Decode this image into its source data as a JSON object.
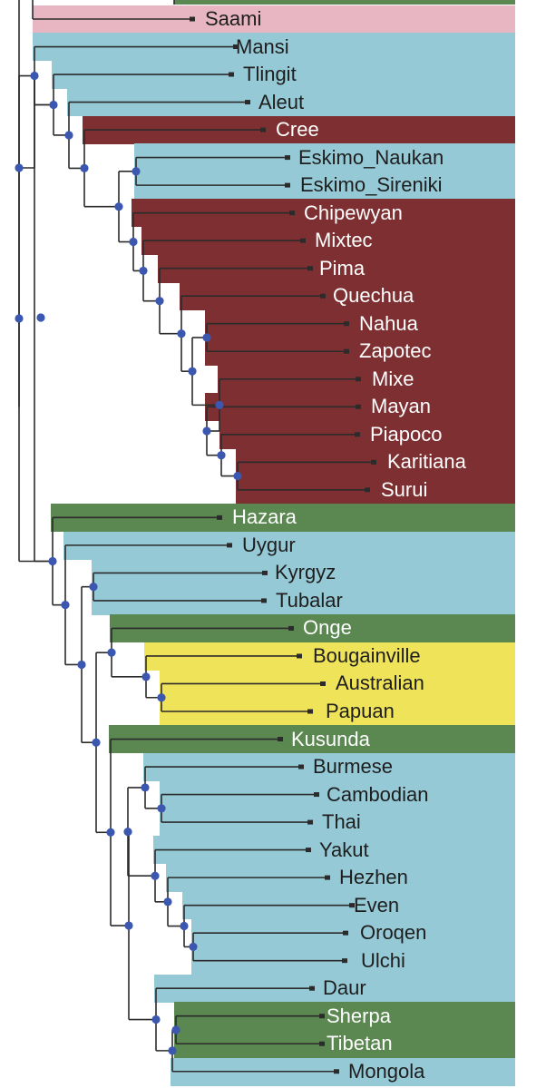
{
  "colors": {
    "blue": "#95c9d6",
    "darkred": "#7e2f31",
    "green": "#5b8751",
    "yellow": "#efe35a",
    "pink": "#e7b6c2",
    "node": "#3b57b0",
    "line": "#2b2b2b"
  },
  "leaves": [
    {
      "label": "Saami",
      "color": "pink"
    },
    {
      "label": "Mansi",
      "color": "blue"
    },
    {
      "label": "Tlingit",
      "color": "blue"
    },
    {
      "label": "Aleut",
      "color": "blue"
    },
    {
      "label": "Cree",
      "color": "darkred"
    },
    {
      "label": "Eskimo_Naukan",
      "color": "blue"
    },
    {
      "label": "Eskimo_Sireniki",
      "color": "blue"
    },
    {
      "label": "Chipewyan",
      "color": "darkred"
    },
    {
      "label": "Mixtec",
      "color": "darkred"
    },
    {
      "label": "Pima",
      "color": "darkred"
    },
    {
      "label": "Quechua",
      "color": "darkred"
    },
    {
      "label": "Nahua",
      "color": "darkred"
    },
    {
      "label": "Zapotec",
      "color": "darkred"
    },
    {
      "label": "Mixe",
      "color": "darkred"
    },
    {
      "label": "Mayan",
      "color": "darkred"
    },
    {
      "label": "Piapoco",
      "color": "darkred"
    },
    {
      "label": "Karitiana",
      "color": "darkred"
    },
    {
      "label": "Surui",
      "color": "darkred"
    },
    {
      "label": "Hazara",
      "color": "green"
    },
    {
      "label": "Uygur",
      "color": "blue"
    },
    {
      "label": "Kyrgyz",
      "color": "blue"
    },
    {
      "label": "Tubalar",
      "color": "blue"
    },
    {
      "label": "Onge",
      "color": "green"
    },
    {
      "label": "Bougainville",
      "color": "yellow"
    },
    {
      "label": "Australian",
      "color": "yellow"
    },
    {
      "label": "Papuan",
      "color": "yellow"
    },
    {
      "label": "Kusunda",
      "color": "green"
    },
    {
      "label": "Burmese",
      "color": "blue"
    },
    {
      "label": "Cambodian",
      "color": "blue"
    },
    {
      "label": "Thai",
      "color": "blue"
    },
    {
      "label": "Yakut",
      "color": "blue"
    },
    {
      "label": "Hezhen",
      "color": "blue"
    },
    {
      "label": "Even",
      "color": "blue"
    },
    {
      "label": "Oroqen",
      "color": "blue"
    },
    {
      "label": "Ulchi",
      "color": "blue"
    },
    {
      "label": "Daur",
      "color": "blue"
    },
    {
      "label": "Sherpa",
      "color": "green"
    },
    {
      "label": "Tibetan",
      "color": "green"
    },
    {
      "label": "Mongola",
      "color": "blue"
    }
  ],
  "clades": [
    {
      "children": [
        5,
        6
      ],
      "support": true
    },
    {
      "children": [
        16,
        17
      ],
      "support": true
    },
    {
      "children": [
        15,
        "c1"
      ],
      "support": true
    },
    {
      "children": [
        14,
        "c2"
      ],
      "support": true
    },
    {
      "children": [
        13,
        "c3"
      ],
      "support": true
    },
    {
      "children": [
        11,
        12
      ],
      "support": true
    },
    {
      "children": [
        "c5",
        "c4"
      ],
      "support": true
    },
    {
      "children": [
        10,
        "c6"
      ],
      "support": true
    },
    {
      "children": [
        9,
        "c7"
      ],
      "support": true
    },
    {
      "children": [
        8,
        "c8"
      ],
      "support": true
    },
    {
      "children": [
        7,
        "c9"
      ],
      "support": true
    },
    {
      "children": [
        "c0",
        "c10"
      ],
      "support": true
    },
    {
      "children": [
        4,
        "c11"
      ],
      "support": true
    },
    {
      "children": [
        3,
        "c12"
      ],
      "support": true
    },
    {
      "children": [
        2,
        "c13"
      ],
      "support": true
    },
    {
      "children": [
        1,
        "c14"
      ],
      "support": true
    },
    {
      "children": [
        20,
        21
      ],
      "support": true
    },
    {
      "children": [
        24,
        25
      ],
      "support": true
    },
    {
      "children": [
        23,
        "c17"
      ],
      "support": true
    },
    {
      "children": [
        22,
        "c18"
      ],
      "support": true
    },
    {
      "children": [
        28,
        29
      ],
      "support": true
    },
    {
      "children": [
        27,
        "c20"
      ],
      "support": true
    },
    {
      "children": [
        33,
        34
      ],
      "support": true
    },
    {
      "children": [
        32,
        "c22"
      ],
      "support": true
    },
    {
      "children": [
        31,
        "c23"
      ],
      "support": true
    },
    {
      "children": [
        30,
        "c24"
      ],
      "support": true
    },
    {
      "children": [
        "c21",
        "c25"
      ],
      "support": true
    },
    {
      "children": [
        36,
        37
      ],
      "support": true
    },
    {
      "children": [
        "c27",
        38
      ],
      "support": true
    },
    {
      "children": [
        35,
        "c28"
      ],
      "support": true
    },
    {
      "children": [
        "c26",
        "c29"
      ],
      "support": true
    },
    {
      "children": [
        26,
        "c30"
      ],
      "support": true
    },
    {
      "children": [
        "c19",
        "c31"
      ],
      "support": true
    },
    {
      "children": [
        "c16",
        "c32"
      ],
      "support": true
    },
    {
      "children": [
        19,
        "c33"
      ],
      "support": true
    },
    {
      "children": [
        18,
        "c34"
      ],
      "support": true
    },
    {
      "children": [
        "c15",
        "c35"
      ],
      "support": true
    }
  ]
}
